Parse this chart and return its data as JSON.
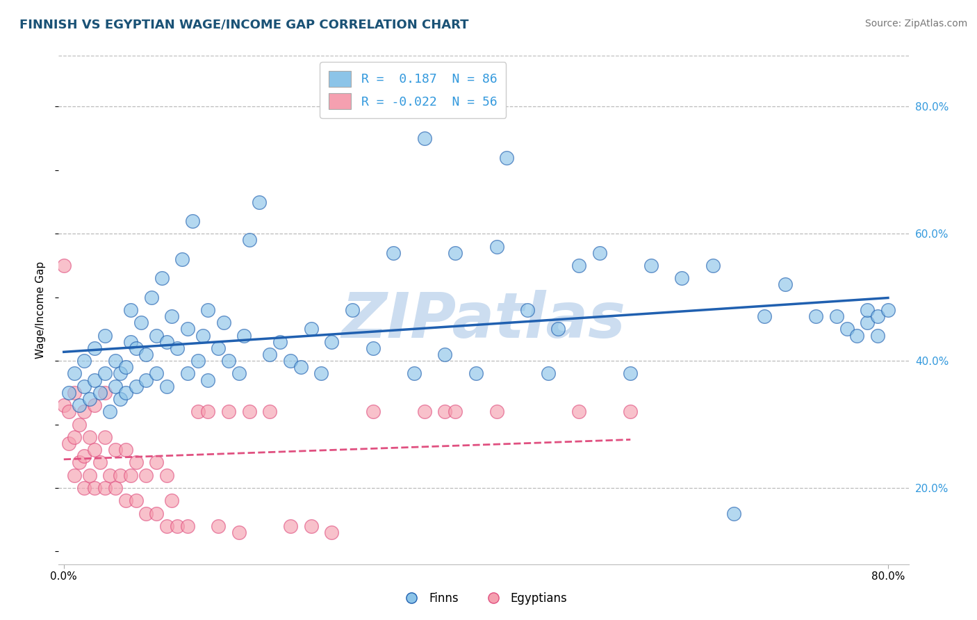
{
  "title": "FINNISH VS EGYPTIAN WAGE/INCOME GAP CORRELATION CHART",
  "source": "Source: ZipAtlas.com",
  "ylabel": "Wage/Income Gap",
  "xlim": [
    -0.005,
    0.82
  ],
  "ylim": [
    0.08,
    0.88
  ],
  "x_ticks": [
    0.0,
    0.8
  ],
  "x_tick_labels": [
    "0.0%",
    "80.0%"
  ],
  "y_tick_labels_right": [
    "20.0%",
    "40.0%",
    "60.0%",
    "80.0%"
  ],
  "y_ticks_right": [
    0.2,
    0.4,
    0.6,
    0.8
  ],
  "finn_color": "#8cc4e8",
  "egypt_color": "#f5a0b0",
  "finn_line_color": "#2060b0",
  "egypt_line_color": "#e05080",
  "background_color": "#ffffff",
  "grid_color": "#bbbbbb",
  "watermark": "ZIPatlas",
  "watermark_color": "#ccddf0",
  "finn_R": 0.187,
  "finn_N": 86,
  "egypt_R": -0.022,
  "egypt_N": 56,
  "legend_label_finn": "R =  0.187  N = 86",
  "legend_label_egypt": "R = -0.022  N = 56",
  "finn_legend": "Finns",
  "egypt_legend": "Egyptians",
  "finn_x": [
    0.005,
    0.01,
    0.015,
    0.02,
    0.02,
    0.025,
    0.03,
    0.03,
    0.035,
    0.04,
    0.04,
    0.045,
    0.05,
    0.05,
    0.055,
    0.055,
    0.06,
    0.06,
    0.065,
    0.065,
    0.07,
    0.07,
    0.075,
    0.08,
    0.08,
    0.085,
    0.09,
    0.09,
    0.095,
    0.1,
    0.1,
    0.105,
    0.11,
    0.115,
    0.12,
    0.12,
    0.125,
    0.13,
    0.135,
    0.14,
    0.14,
    0.15,
    0.155,
    0.16,
    0.17,
    0.175,
    0.18,
    0.19,
    0.2,
    0.21,
    0.22,
    0.23,
    0.24,
    0.25,
    0.26,
    0.28,
    0.3,
    0.32,
    0.34,
    0.35,
    0.37,
    0.38,
    0.4,
    0.42,
    0.43,
    0.45,
    0.47,
    0.48,
    0.5,
    0.52,
    0.55,
    0.57,
    0.6,
    0.63,
    0.65,
    0.68,
    0.7,
    0.73,
    0.75,
    0.76,
    0.77,
    0.78,
    0.78,
    0.79,
    0.79,
    0.8
  ],
  "finn_y": [
    0.35,
    0.38,
    0.33,
    0.36,
    0.4,
    0.34,
    0.37,
    0.42,
    0.35,
    0.38,
    0.44,
    0.32,
    0.36,
    0.4,
    0.34,
    0.38,
    0.35,
    0.39,
    0.43,
    0.48,
    0.36,
    0.42,
    0.46,
    0.37,
    0.41,
    0.5,
    0.38,
    0.44,
    0.53,
    0.36,
    0.43,
    0.47,
    0.42,
    0.56,
    0.38,
    0.45,
    0.62,
    0.4,
    0.44,
    0.37,
    0.48,
    0.42,
    0.46,
    0.4,
    0.38,
    0.44,
    0.59,
    0.65,
    0.41,
    0.43,
    0.4,
    0.39,
    0.45,
    0.38,
    0.43,
    0.48,
    0.42,
    0.57,
    0.38,
    0.75,
    0.41,
    0.57,
    0.38,
    0.58,
    0.72,
    0.48,
    0.38,
    0.45,
    0.55,
    0.57,
    0.38,
    0.55,
    0.53,
    0.55,
    0.16,
    0.47,
    0.52,
    0.47,
    0.47,
    0.45,
    0.44,
    0.46,
    0.48,
    0.44,
    0.47,
    0.48
  ],
  "egypt_x": [
    0.0,
    0.0,
    0.005,
    0.005,
    0.01,
    0.01,
    0.01,
    0.015,
    0.015,
    0.02,
    0.02,
    0.02,
    0.025,
    0.025,
    0.03,
    0.03,
    0.03,
    0.035,
    0.04,
    0.04,
    0.04,
    0.045,
    0.05,
    0.05,
    0.055,
    0.06,
    0.06,
    0.065,
    0.07,
    0.07,
    0.08,
    0.08,
    0.09,
    0.09,
    0.1,
    0.1,
    0.105,
    0.11,
    0.12,
    0.13,
    0.14,
    0.15,
    0.16,
    0.17,
    0.18,
    0.2,
    0.22,
    0.24,
    0.26,
    0.3,
    0.35,
    0.37,
    0.38,
    0.42,
    0.5,
    0.55
  ],
  "egypt_y": [
    0.33,
    0.55,
    0.27,
    0.32,
    0.22,
    0.28,
    0.35,
    0.24,
    0.3,
    0.2,
    0.25,
    0.32,
    0.22,
    0.28,
    0.2,
    0.26,
    0.33,
    0.24,
    0.2,
    0.28,
    0.35,
    0.22,
    0.2,
    0.26,
    0.22,
    0.18,
    0.26,
    0.22,
    0.18,
    0.24,
    0.16,
    0.22,
    0.16,
    0.24,
    0.14,
    0.22,
    0.18,
    0.14,
    0.14,
    0.32,
    0.32,
    0.14,
    0.32,
    0.13,
    0.32,
    0.32,
    0.14,
    0.14,
    0.13,
    0.32,
    0.32,
    0.32,
    0.32,
    0.32,
    0.32,
    0.32
  ]
}
